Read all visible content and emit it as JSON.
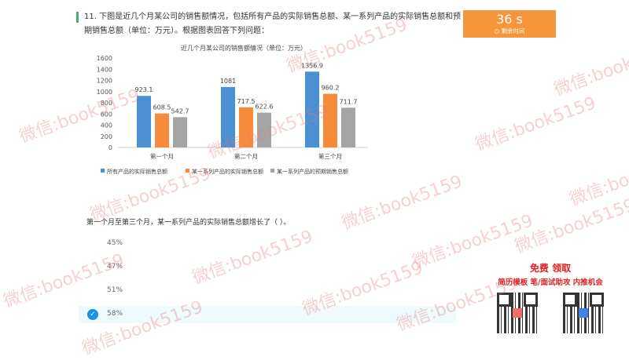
{
  "question": {
    "number_text": "11. 下图是近几个月某公司的销售额情况，包括所有产品的实际销售总额、某一系列产品的实际销售总额和预期销售总额（单位：万元）。根据图表回答下列问题：",
    "sub_question": "第一个月至第三个月，某一系列产品的实际销售总额增长了（ ）。",
    "options": [
      {
        "label": "45%",
        "selected": false
      },
      {
        "label": "47%",
        "selected": false
      },
      {
        "label": "51%",
        "selected": false
      },
      {
        "label": "58%",
        "selected": true
      }
    ]
  },
  "timer": {
    "value": "36 s",
    "label": "剩余时间",
    "icon": "clock-icon",
    "color": "#f7953a"
  },
  "chart_data": {
    "type": "bar",
    "title": "近几个月某公司的销售额情况（单位：万元）",
    "categories": [
      "第一个月",
      "第二个月",
      "第三个月"
    ],
    "series": [
      {
        "name": "所有产品的实际销售总额",
        "values": [
          923.1,
          1081,
          1356.9
        ],
        "labels": [
          "923.1",
          "1081",
          "1356.9"
        ],
        "color": "#4a90d2"
      },
      {
        "name": "某一系列产品的实际销售总额",
        "values": [
          608.5,
          717.5,
          960.2
        ],
        "labels": [
          "608.5",
          "717.5",
          "960.2"
        ],
        "color": "#f68b3c"
      },
      {
        "name": "某一系列产品的预期销售总额",
        "values": [
          542.7,
          622.6,
          711.7
        ],
        "labels": [
          "542.7",
          "622.6",
          "711.7"
        ],
        "color": "#a5a5a5"
      }
    ],
    "yticks": [
      "0",
      "200",
      "400",
      "600",
      "800",
      "1000",
      "1200",
      "1400",
      "1600"
    ],
    "ylim": [
      0,
      1600
    ],
    "grid": false,
    "legend": "bottom"
  },
  "promo": {
    "title": "免费 领取",
    "subtitle": "简历模板  笔/面试助攻  内推机会"
  },
  "watermark": "微信:book5159"
}
